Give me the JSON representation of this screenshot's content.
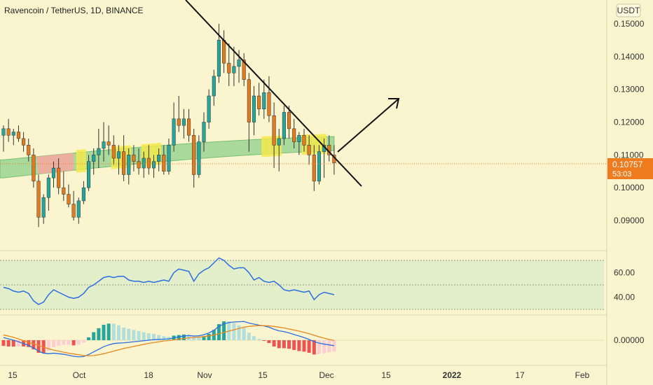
{
  "header": {
    "title": "Ravencoin / TetherUS, 1D, BINANCE"
  },
  "currency_badge": "USDT",
  "colors": {
    "background": "#faf5cf",
    "bull": "#26a69a",
    "bear": "#e07b1f",
    "highlight": "#f5e84b",
    "band": "#8fd18b",
    "band_red": "#f3a9a0",
    "rsi": "#2a6fe0",
    "macd": "#2a6fe0",
    "signal": "#e8881f",
    "price_tag": "#ef7b1f"
  },
  "price_tag": {
    "value": "0.10757",
    "countdown": "53:03"
  },
  "chart_data": [
    {
      "type": "candlestick",
      "title": "Ravencoin / TetherUS, 1D, BINANCE",
      "y_ticks": [
        "0.15000",
        "0.14000",
        "0.13000",
        "0.12000",
        "0.11000",
        "0.10000",
        "0.09000"
      ],
      "ylim": [
        0.0835,
        0.1535
      ],
      "x_ticks": [
        "15",
        "Oct",
        "18",
        "Nov",
        "15",
        "Dec",
        "15",
        "2022",
        "17",
        "Feb"
      ],
      "current_price": 0.10757,
      "candles": [
        [
          0.116,
          0.119,
          0.111,
          0.118
        ],
        [
          0.118,
          0.121,
          0.114,
          0.116
        ],
        [
          0.116,
          0.118,
          0.113,
          0.117
        ],
        [
          0.117,
          0.119,
          0.114,
          0.115
        ],
        [
          0.115,
          0.117,
          0.111,
          0.113
        ],
        [
          0.113,
          0.115,
          0.108,
          0.11
        ],
        [
          0.11,
          0.112,
          0.1,
          0.102
        ],
        [
          0.102,
          0.104,
          0.088,
          0.091
        ],
        [
          0.091,
          0.098,
          0.089,
          0.097
        ],
        [
          0.097,
          0.104,
          0.093,
          0.103
        ],
        [
          0.103,
          0.108,
          0.1,
          0.106
        ],
        [
          0.106,
          0.109,
          0.098,
          0.1
        ],
        [
          0.1,
          0.105,
          0.096,
          0.098
        ],
        [
          0.098,
          0.101,
          0.094,
          0.095
        ],
        [
          0.095,
          0.099,
          0.09,
          0.091
        ],
        [
          0.091,
          0.097,
          0.089,
          0.096
        ],
        [
          0.096,
          0.102,
          0.095,
          0.1
        ],
        [
          0.1,
          0.11,
          0.099,
          0.108
        ],
        [
          0.108,
          0.112,
          0.104,
          0.11
        ],
        [
          0.11,
          0.118,
          0.106,
          0.112
        ],
        [
          0.112,
          0.12,
          0.108,
          0.114
        ],
        [
          0.114,
          0.119,
          0.11,
          0.113
        ],
        [
          0.113,
          0.116,
          0.107,
          0.109
        ],
        [
          0.109,
          0.113,
          0.104,
          0.111
        ],
        [
          0.111,
          0.116,
          0.102,
          0.104
        ],
        [
          0.104,
          0.112,
          0.101,
          0.11
        ],
        [
          0.11,
          0.113,
          0.105,
          0.108
        ],
        [
          0.108,
          0.112,
          0.104,
          0.106
        ],
        [
          0.106,
          0.111,
          0.103,
          0.109
        ],
        [
          0.109,
          0.113,
          0.104,
          0.106
        ],
        [
          0.106,
          0.11,
          0.103,
          0.108
        ],
        [
          0.108,
          0.112,
          0.105,
          0.11
        ],
        [
          0.11,
          0.113,
          0.104,
          0.105
        ],
        [
          0.105,
          0.115,
          0.104,
          0.113
        ],
        [
          0.113,
          0.126,
          0.111,
          0.121
        ],
        [
          0.121,
          0.128,
          0.117,
          0.119
        ],
        [
          0.119,
          0.124,
          0.115,
          0.121
        ],
        [
          0.121,
          0.124,
          0.114,
          0.116
        ],
        [
          0.116,
          0.118,
          0.1,
          0.104
        ],
        [
          0.104,
          0.116,
          0.103,
          0.114
        ],
        [
          0.114,
          0.123,
          0.111,
          0.12
        ],
        [
          0.12,
          0.13,
          0.118,
          0.128
        ],
        [
          0.128,
          0.136,
          0.125,
          0.134
        ],
        [
          0.134,
          0.15,
          0.132,
          0.145
        ],
        [
          0.145,
          0.148,
          0.135,
          0.138
        ],
        [
          0.138,
          0.144,
          0.131,
          0.135
        ],
        [
          0.135,
          0.143,
          0.131,
          0.137
        ],
        [
          0.137,
          0.142,
          0.132,
          0.139
        ],
        [
          0.139,
          0.141,
          0.131,
          0.133
        ],
        [
          0.133,
          0.135,
          0.111,
          0.12
        ],
        [
          0.12,
          0.131,
          0.116,
          0.128
        ],
        [
          0.128,
          0.132,
          0.122,
          0.124
        ],
        [
          0.124,
          0.133,
          0.121,
          0.129
        ],
        [
          0.129,
          0.134,
          0.12,
          0.122
        ],
        [
          0.122,
          0.126,
          0.106,
          0.113
        ],
        [
          0.113,
          0.118,
          0.105,
          0.115
        ],
        [
          0.115,
          0.125,
          0.113,
          0.123
        ],
        [
          0.123,
          0.125,
          0.115,
          0.118
        ],
        [
          0.118,
          0.121,
          0.112,
          0.114
        ],
        [
          0.114,
          0.117,
          0.11,
          0.116
        ],
        [
          0.116,
          0.118,
          0.111,
          0.113
        ],
        [
          0.113,
          0.116,
          0.107,
          0.11
        ],
        [
          0.11,
          0.113,
          0.099,
          0.102
        ],
        [
          0.102,
          0.113,
          0.101,
          0.111
        ],
        [
          0.111,
          0.115,
          0.103,
          0.113
        ],
        [
          0.113,
          0.116,
          0.108,
          0.11
        ],
        [
          0.11,
          0.113,
          0.104,
          0.10757
        ]
      ]
    },
    {
      "type": "line",
      "name": "RSI",
      "y_ticks": [
        "60.00",
        "40.00"
      ],
      "ylim": [
        26,
        76
      ],
      "band": [
        70,
        30
      ],
      "midline": 50,
      "values": [
        48,
        47,
        45,
        44,
        45,
        43,
        37,
        34,
        36,
        42,
        46,
        44,
        42,
        40,
        39,
        40,
        43,
        48,
        50,
        53,
        56,
        57,
        56,
        57,
        57,
        54,
        53,
        53,
        52,
        53,
        52,
        53,
        54,
        53,
        60,
        63,
        62,
        61,
        53,
        59,
        62,
        64,
        68,
        72,
        70,
        66,
        63,
        64,
        64,
        60,
        54,
        56,
        53,
        52,
        53,
        50,
        46,
        45,
        46,
        45,
        44,
        45,
        38,
        42,
        44,
        43,
        42
      ]
    },
    {
      "type": "bar",
      "name": "MACD",
      "y_ticks": [
        "0.00000"
      ],
      "ylim": [
        -0.009,
        0.009
      ],
      "macd": [
        0.001,
        0.0005,
        0.0,
        -0.0006,
        -0.0013,
        -0.002,
        -0.003,
        -0.0042,
        -0.005,
        -0.0052,
        -0.005,
        -0.0052,
        -0.0054,
        -0.0058,
        -0.0062,
        -0.0064,
        -0.0063,
        -0.0055,
        -0.0045,
        -0.0035,
        -0.0025,
        -0.0018,
        -0.0013,
        -0.0011,
        -0.001,
        -0.0008,
        -0.0006,
        -0.0004,
        -0.0002,
        0.0,
        0.0002,
        0.0003,
        0.0004,
        0.0005,
        0.0009,
        0.0013,
        0.0016,
        0.0018,
        0.0016,
        0.0017,
        0.0021,
        0.0028,
        0.0038,
        0.0053,
        0.0063,
        0.0068,
        0.007,
        0.0071,
        0.0072,
        0.0066,
        0.0062,
        0.0058,
        0.0055,
        0.005,
        0.0042,
        0.0036,
        0.0033,
        0.0028,
        0.0022,
        0.0016,
        0.001,
        0.0003,
        -0.0006,
        -0.0011,
        -0.0015,
        -0.0018,
        -0.0021
      ],
      "signal": [
        0.002,
        0.0016,
        0.0011,
        0.0005,
        -0.0002,
        -0.0008,
        -0.0014,
        -0.002,
        -0.0027,
        -0.0033,
        -0.0038,
        -0.0042,
        -0.0046,
        -0.005,
        -0.0053,
        -0.0056,
        -0.0059,
        -0.006,
        -0.0059,
        -0.0056,
        -0.0052,
        -0.0047,
        -0.0042,
        -0.0037,
        -0.0032,
        -0.0028,
        -0.0024,
        -0.002,
        -0.0016,
        -0.0012,
        -0.0009,
        -0.0006,
        -0.0003,
        -0.0001,
        0.0001,
        0.0004,
        0.0006,
        0.0009,
        0.001,
        0.0012,
        0.0014,
        0.0017,
        0.002,
        0.0025,
        0.003,
        0.0035,
        0.004,
        0.0045,
        0.005,
        0.0053,
        0.0055,
        0.0056,
        0.0056,
        0.0055,
        0.0053,
        0.005,
        0.0047,
        0.0043,
        0.0039,
        0.0035,
        0.003,
        0.0025,
        0.0019,
        0.0013,
        0.0008,
        0.0003,
        -0.0001
      ]
    }
  ]
}
